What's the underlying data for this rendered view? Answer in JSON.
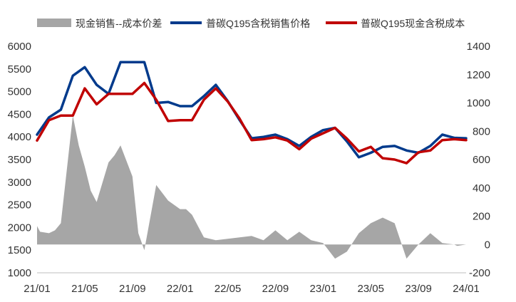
{
  "chart_data": {
    "type": "line",
    "title": "",
    "xlabel": "",
    "ylabel": "",
    "x_ticks": [
      "21/01",
      "21/05",
      "21/09",
      "22/01",
      "22/05",
      "22/09",
      "23/01",
      "23/05",
      "23/09",
      "24/01"
    ],
    "ylim_left": [
      1000,
      6000
    ],
    "yticks_left": [
      1000,
      1500,
      2000,
      2500,
      3000,
      3500,
      4000,
      4500,
      5000,
      5500,
      6000
    ],
    "ylim_right": [
      -200,
      1400
    ],
    "yticks_right": [
      -200,
      0,
      200,
      400,
      600,
      800,
      1000,
      1200,
      1400
    ],
    "grid": false,
    "legend_position": "top",
    "colors": {
      "spread_area": "#a6a6a6",
      "sales_price": "#003a8c",
      "cash_cost": "#c00000"
    },
    "series": [
      {
        "name": "现金销售--成本价差",
        "type": "area",
        "axis": "right",
        "x": [
          0,
          0.25,
          1,
          1.5,
          2,
          3,
          3.5,
          4,
          4.5,
          5,
          6,
          6.5,
          7,
          8,
          8.5,
          9,
          10,
          11,
          12,
          12.5,
          13,
          14,
          15,
          16,
          17,
          17.5,
          18,
          19,
          20,
          21,
          22,
          23,
          24,
          25,
          26,
          27,
          28,
          29,
          30,
          31,
          32,
          33,
          34,
          35,
          35.25,
          36
        ],
        "values": [
          130,
          90,
          80,
          100,
          150,
          910,
          700,
          550,
          380,
          300,
          580,
          630,
          700,
          480,
          80,
          -40,
          420,
          310,
          250,
          250,
          210,
          50,
          30,
          40,
          50,
          55,
          60,
          30,
          100,
          30,
          90,
          30,
          10,
          -100,
          -50,
          80,
          150,
          190,
          150,
          -100,
          0,
          80,
          10,
          0,
          -10,
          0
        ]
      },
      {
        "name": "普碳Q195含税销售价格",
        "type": "line",
        "axis": "left",
        "x": [
          0,
          1,
          2,
          3,
          4,
          5,
          6,
          7,
          8,
          9,
          10,
          11,
          12,
          13,
          14,
          15,
          16,
          17,
          18,
          19,
          20,
          21,
          22,
          23,
          24,
          25,
          26,
          27,
          28,
          29,
          30,
          31,
          32,
          33,
          34,
          35,
          36
        ],
        "values": [
          4050,
          4430,
          4600,
          5350,
          5540,
          5150,
          4950,
          5650,
          5650,
          5650,
          4750,
          4770,
          4680,
          4680,
          4900,
          5150,
          4790,
          4370,
          3970,
          4000,
          4050,
          3950,
          3800,
          4000,
          4150,
          4200,
          3900,
          3550,
          3650,
          3780,
          3800,
          3700,
          3650,
          3800,
          4050,
          3980,
          3970
        ]
      },
      {
        "name": "普碳Q195现金含税成本",
        "type": "line",
        "axis": "left",
        "x": [
          0,
          1,
          2,
          3,
          4,
          5,
          6,
          7,
          8,
          9,
          10,
          11,
          12,
          13,
          14,
          15,
          16,
          17,
          18,
          19,
          20,
          21,
          22,
          23,
          24,
          25,
          26,
          27,
          28,
          29,
          30,
          31,
          32,
          33,
          34,
          35,
          36
        ],
        "values": [
          3920,
          4370,
          4470,
          4470,
          5070,
          4720,
          4950,
          4950,
          4950,
          5190,
          4820,
          4350,
          4370,
          4370,
          4820,
          5070,
          4780,
          4400,
          3930,
          3950,
          3990,
          3920,
          3730,
          3960,
          4080,
          4200,
          3960,
          3680,
          3780,
          3530,
          3500,
          3420,
          3660,
          3700,
          3930,
          3950,
          3930
        ]
      }
    ]
  }
}
